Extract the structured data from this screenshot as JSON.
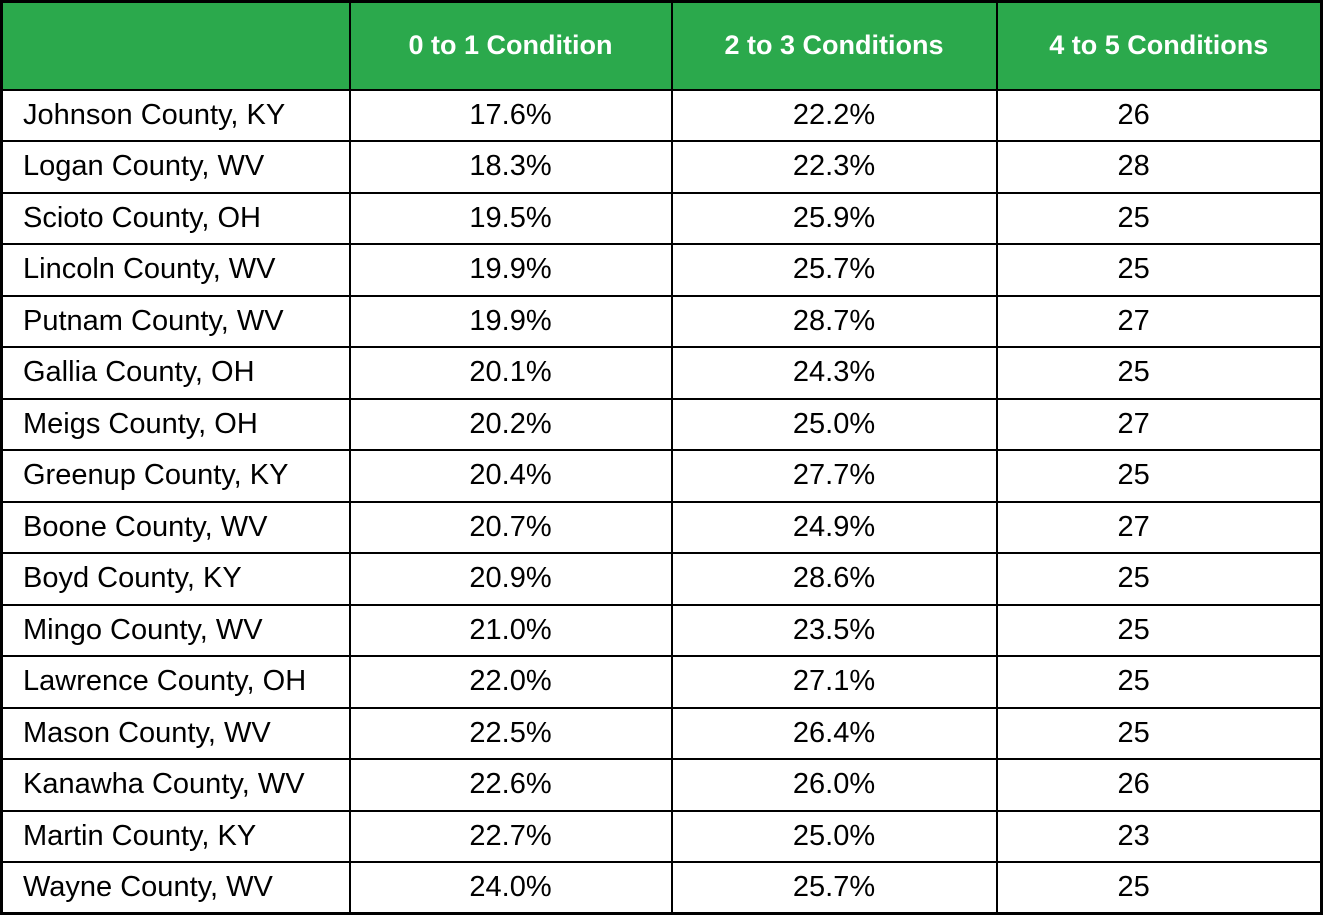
{
  "colors": {
    "header_bg": "#2BA94C",
    "header_text": "#FFFFFF",
    "border": "#000000"
  },
  "chart_data": {
    "type": "table",
    "title": "",
    "columns": [
      "",
      "0 to 1 Condition",
      "2 to 3 Conditions",
      "4 to 5 Conditions"
    ],
    "rows": [
      {
        "county": "Johnson County, KY",
        "c1": "17.6%",
        "c2": "22.2%",
        "c3": "26"
      },
      {
        "county": "Logan County, WV",
        "c1": "18.3%",
        "c2": "22.3%",
        "c3": "28"
      },
      {
        "county": "Scioto County, OH",
        "c1": "19.5%",
        "c2": "25.9%",
        "c3": "25"
      },
      {
        "county": "Lincoln County, WV",
        "c1": "19.9%",
        "c2": "25.7%",
        "c3": "25"
      },
      {
        "county": "Putnam County, WV",
        "c1": "19.9%",
        "c2": "28.7%",
        "c3": "27"
      },
      {
        "county": "Gallia County, OH",
        "c1": "20.1%",
        "c2": "24.3%",
        "c3": "25"
      },
      {
        "county": "Meigs County, OH",
        "c1": "20.2%",
        "c2": "25.0%",
        "c3": "27"
      },
      {
        "county": "Greenup County, KY",
        "c1": "20.4%",
        "c2": "27.7%",
        "c3": "25"
      },
      {
        "county": "Boone County, WV",
        "c1": "20.7%",
        "c2": "24.9%",
        "c3": "27"
      },
      {
        "county": "Boyd County, KY",
        "c1": "20.9%",
        "c2": "28.6%",
        "c3": "25"
      },
      {
        "county": "Mingo County, WV",
        "c1": "21.0%",
        "c2": "23.5%",
        "c3": "25"
      },
      {
        "county": "Lawrence County, OH",
        "c1": "22.0%",
        "c2": "27.1%",
        "c3": "25"
      },
      {
        "county": "Mason County, WV",
        "c1": "22.5%",
        "c2": "26.4%",
        "c3": "25"
      },
      {
        "county": "Kanawha County, WV",
        "c1": "22.6%",
        "c2": "26.0%",
        "c3": "26"
      },
      {
        "county": "Martin County, KY",
        "c1": "22.7%",
        "c2": "25.0%",
        "c3": "23"
      },
      {
        "county": "Wayne County, WV",
        "c1": "24.0%",
        "c2": "25.7%",
        "c3": "25"
      }
    ]
  }
}
